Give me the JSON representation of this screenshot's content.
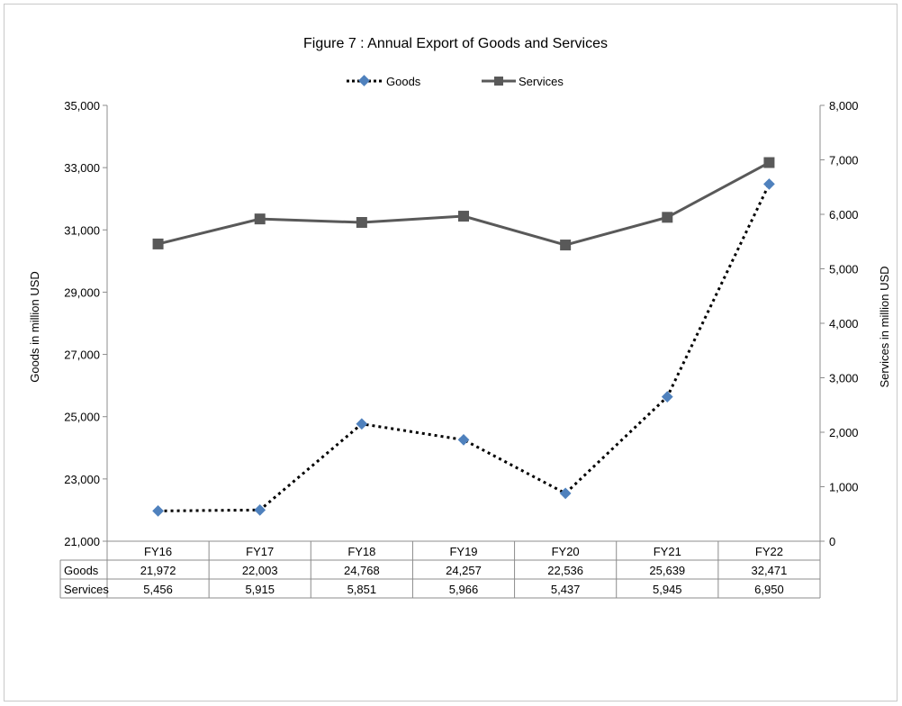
{
  "chart_data": {
    "type": "line",
    "title": "Figure  7 : Annual Export of Goods and Services",
    "categories": [
      "FY16",
      "FY17",
      "FY18",
      "FY19",
      "FY20",
      "FY21",
      "FY22"
    ],
    "y_left_label": "Goods in million USD",
    "y_right_label": "Services in million  USD",
    "y_left_ticks": [
      "21,000",
      "23,000",
      "25,000",
      "27,000",
      "29,000",
      "31,000",
      "33,000",
      "35,000"
    ],
    "y_right_ticks": [
      "0",
      "1,000",
      "2,000",
      "3,000",
      "4,000",
      "5,000",
      "6,000",
      "7,000",
      "8,000"
    ],
    "y_left_range": [
      21000,
      35000
    ],
    "y_right_range": [
      0,
      8000
    ],
    "legend_position": "top-center",
    "series": [
      {
        "name": "Goods",
        "axis": "left",
        "style": "dotted-line-diamond-markers",
        "line_color": "#000000",
        "marker_color": "#4f81bd",
        "values": [
          21972,
          22003,
          24768,
          24257,
          22536,
          25639,
          32471
        ],
        "labels": [
          "21,972",
          "22,003",
          "24,768",
          "24,257",
          "22,536",
          "25,639",
          "32,471"
        ]
      },
      {
        "name": "Services",
        "axis": "right",
        "style": "solid-line-square-markers",
        "line_color": "#595959",
        "marker_color": "#595959",
        "values": [
          5456,
          5915,
          5851,
          5966,
          5437,
          5945,
          6950
        ],
        "labels": [
          "5,456",
          "5,915",
          "5,851",
          "5,966",
          "5,437",
          "5,945",
          "6,950"
        ]
      }
    ],
    "data_table": true
  }
}
